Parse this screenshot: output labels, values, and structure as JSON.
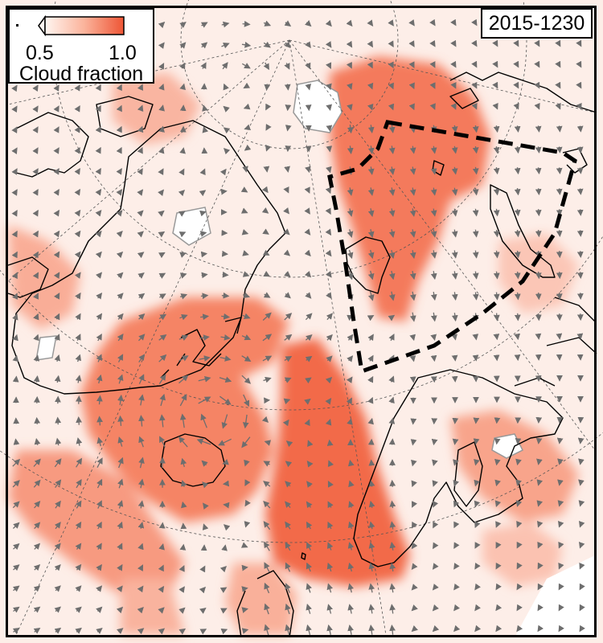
{
  "date_label": "2015-1230",
  "legend": {
    "title": "Cloud fraction",
    "tick_low": "0.5",
    "tick_high": "1.0",
    "color_low": "#fff5f0",
    "color_high": "#ef5a3a"
  },
  "colors": {
    "background_low_cloud": "#fdeee8",
    "cloud_high": "#f26a4a",
    "cloud_mid": "#f79a80",
    "land_outline": "#000000",
    "wind_arrow": "#6e6e6e",
    "region_outline": "#000000",
    "graticule": "#555555"
  },
  "layers": [
    "cloud-fraction-field",
    "coastlines",
    "wind-vectors",
    "graticule",
    "study-region-outline"
  ]
}
